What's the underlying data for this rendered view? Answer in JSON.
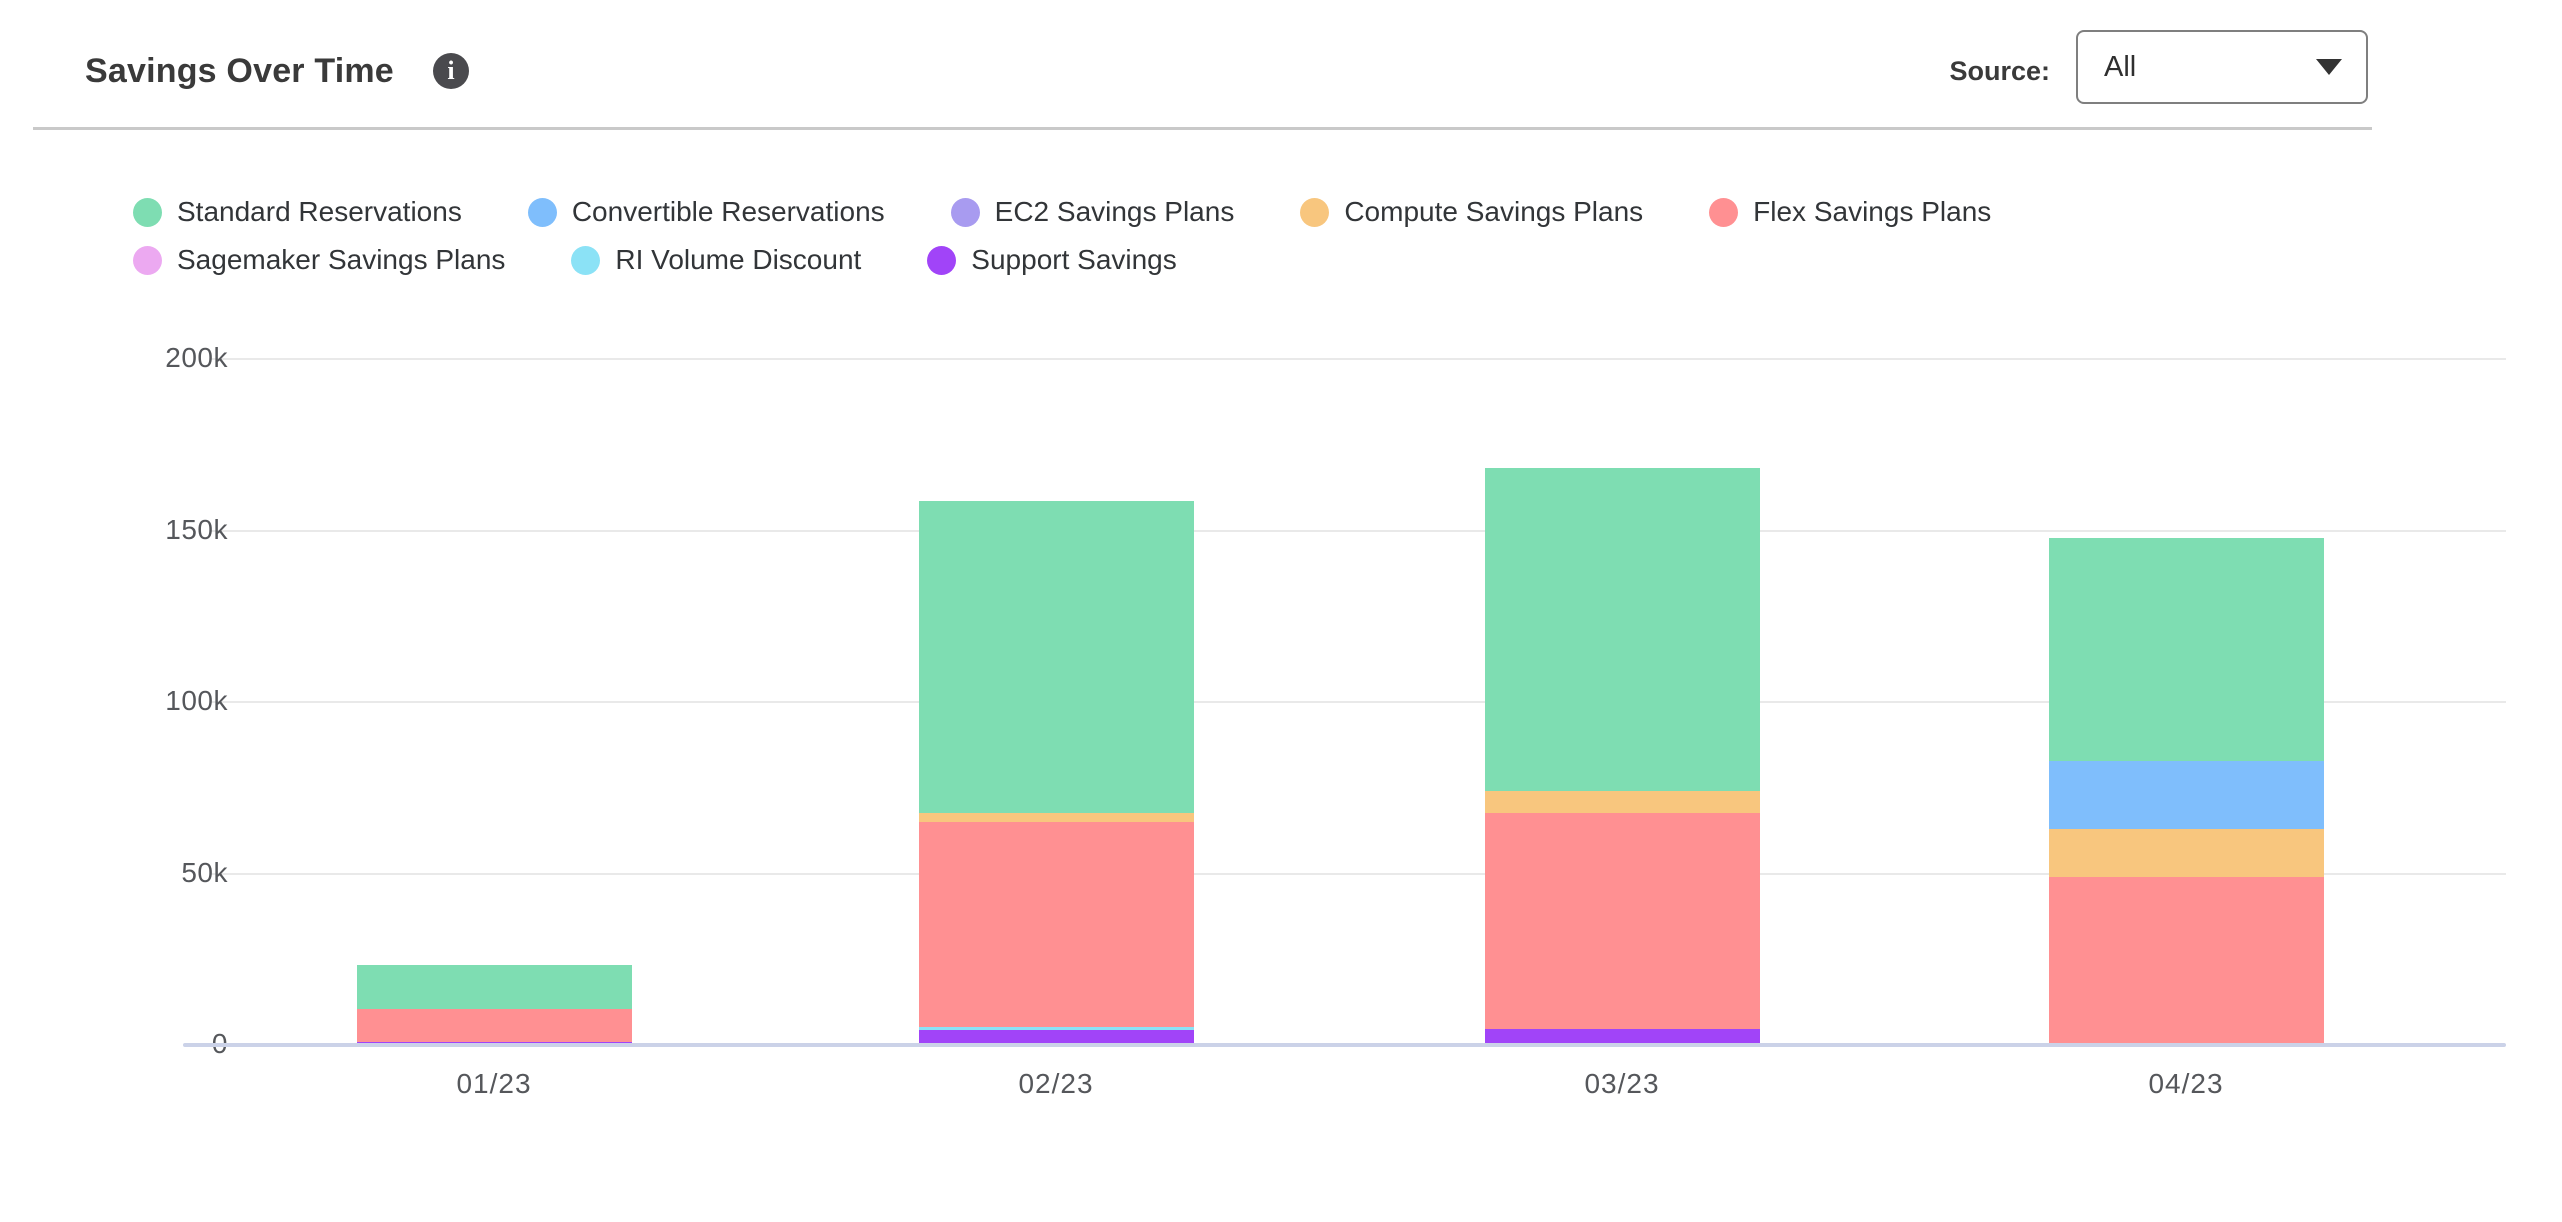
{
  "header": {
    "title": "Savings Over Time",
    "info_icon_glyph": "i",
    "source_label": "Source:",
    "source_value": "All"
  },
  "legend": {
    "row_split": [
      5,
      3
    ]
  },
  "chart_data": {
    "type": "bar",
    "stacked": true,
    "title": "Savings Over Time",
    "xlabel": "",
    "ylabel": "",
    "categories": [
      "01/23",
      "02/23",
      "03/23",
      "04/23"
    ],
    "series": [
      {
        "name": "Standard Reservations",
        "color": "#7EDDB2",
        "values": [
          12800,
          91200,
          94200,
          65100
        ]
      },
      {
        "name": "Convertible Reservations",
        "color": "#7FBEFC",
        "values": [
          0,
          0,
          0,
          19600
        ]
      },
      {
        "name": "EC2 Savings Plans",
        "color": "#A89BF0",
        "values": [
          0,
          0,
          0,
          0
        ]
      },
      {
        "name": "Compute Savings Plans",
        "color": "#F8C67E",
        "values": [
          0,
          2600,
          6500,
          14000
        ]
      },
      {
        "name": "Flex Savings Plans",
        "color": "#FF9092",
        "values": [
          9400,
          59700,
          62700,
          49100
        ]
      },
      {
        "name": "Sagemaker Savings Plans",
        "color": "#ECA9F1",
        "values": [
          0,
          0,
          0,
          0
        ]
      },
      {
        "name": "RI Volume Discount",
        "color": "#8BE2F6",
        "values": [
          0,
          900,
          0,
          0
        ]
      },
      {
        "name": "Support Savings",
        "color": "#A144F8",
        "values": [
          1000,
          4300,
          4800,
          0
        ]
      }
    ],
    "stack_order_note": "segments stack with first legend series on top",
    "totals": [
      23200,
      158700,
      168200,
      147800
    ],
    "yticks": [
      "0",
      "50k",
      "100k",
      "150k",
      "200k"
    ],
    "ytick_values": [
      0,
      50000,
      100000,
      150000,
      200000
    ],
    "ylim": [
      0,
      200000
    ],
    "grid": true,
    "legend_position": "top",
    "colors": {
      "axis_line": "#CBD2E8",
      "gridline": "#E9E9E9",
      "tick_text": "#55575B",
      "legend_text": "#323538",
      "title_text": "#3A3A3A"
    }
  }
}
